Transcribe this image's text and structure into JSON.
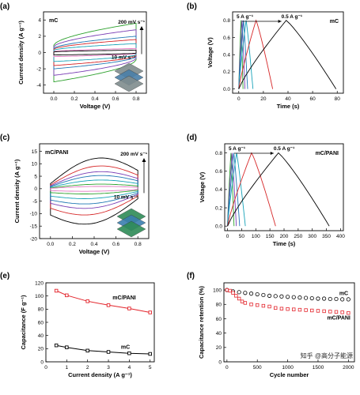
{
  "panels": [
    {
      "id": "a",
      "label": "(a)",
      "type": "cv",
      "material": "mC",
      "xlabel": "Voltage (V)",
      "ylabel": "Current density (A g⁻¹)",
      "xlim": [
        -0.1,
        0.9
      ],
      "ylim": [
        -5,
        5
      ],
      "xticks": [
        0.0,
        0.2,
        0.4,
        0.6,
        0.8
      ],
      "xtick_labels": [
        "0.0",
        "0.2",
        "0.4",
        "0.6",
        "0.8"
      ],
      "yticks": [
        -4,
        -2,
        0,
        2,
        4
      ],
      "ytick_labels": [
        "-4",
        "-2",
        "0",
        "2",
        "4"
      ],
      "annot_top": "200 mV s⁻¹",
      "annot_bottom": "10 mV s⁻¹",
      "scan_rates_mV_s": [
        200,
        150,
        100,
        80,
        50,
        20,
        10
      ],
      "colors": [
        "#2ca02c",
        "#7b3fb5",
        "#1f77b4",
        "#d62728",
        "#17a2b8",
        "#e377c2",
        "#000000"
      ],
      "peak_current_A_g": [
        3.6,
        2.8,
        2.0,
        1.6,
        1.1,
        0.5,
        0.3
      ]
    },
    {
      "id": "b",
      "label": "(b)",
      "type": "gcd",
      "material": "mC",
      "xlabel": "Time (s)",
      "ylabel": "Voltage (V)",
      "xlim": [
        -5,
        85
      ],
      "ylim": [
        -0.05,
        0.9
      ],
      "xticks": [
        0,
        20,
        40,
        60,
        80
      ],
      "xtick_labels": [
        "0",
        "20",
        "40",
        "60",
        "80"
      ],
      "yticks": [
        0.0,
        0.2,
        0.4,
        0.6,
        0.8
      ],
      "ytick_labels": [
        "0.0",
        "0.2",
        "0.4",
        "0.6",
        "0.8"
      ],
      "annot_left": "5 A g⁻¹",
      "annot_right": "0.5 A g⁻¹",
      "series": [
        {
          "current": "5 A g⁻¹",
          "color": "#2ca02c",
          "t_peak": 1.8,
          "t_end": 3.5
        },
        {
          "current": "4 A g⁻¹",
          "color": "#7b3fb5",
          "t_peak": 2.6,
          "t_end": 5.0
        },
        {
          "current": "3 A g⁻¹",
          "color": "#1f77b4",
          "t_peak": 3.8,
          "t_end": 7.2
        },
        {
          "current": "2 A g⁻¹",
          "color": "#17a2b8",
          "t_peak": 6.0,
          "t_end": 11.5
        },
        {
          "current": "1 A g⁻¹",
          "color": "#d62728",
          "t_peak": 14.0,
          "t_end": 27.5
        },
        {
          "current": "0.5 A g⁻¹",
          "color": "#000000",
          "t_peak": 38.5,
          "t_end": 79.0
        }
      ]
    },
    {
      "id": "c",
      "label": "(c)",
      "type": "cv",
      "material": "mC/PANI",
      "xlabel": "Voltage (V)",
      "ylabel": "Current density (A g⁻¹)",
      "xlim": [
        -0.1,
        0.9
      ],
      "ylim": [
        -20,
        18
      ],
      "xticks": [
        0.0,
        0.2,
        0.4,
        0.6,
        0.8
      ],
      "xtick_labels": [
        "0.0",
        "0.2",
        "0.4",
        "0.6",
        "0.8"
      ],
      "yticks": [
        -20,
        -15,
        -10,
        -5,
        0,
        5,
        10,
        15
      ],
      "ytick_labels": [
        "-20",
        "-15",
        "-10",
        "-5",
        "0",
        "5",
        "10",
        "15"
      ],
      "annot_top": "200 mV s⁻¹",
      "annot_bottom": "10 mV s⁻¹",
      "scan_rates_mV_s": [
        200,
        150,
        100,
        80,
        50,
        20,
        10
      ],
      "colors": [
        "#000000",
        "#d62728",
        "#7b3fb5",
        "#1f77b4",
        "#17a2b8",
        "#2ca02c",
        "#e377c2"
      ],
      "peak_current_A_g": [
        13.5,
        10.0,
        7.5,
        5.8,
        3.8,
        2.0,
        1.0
      ]
    },
    {
      "id": "d",
      "label": "(d)",
      "type": "gcd",
      "material": "mC/PANI",
      "xlabel": "Time (s)",
      "ylabel": "Voltage (V)",
      "xlim": [
        -10,
        410
      ],
      "ylim": [
        -0.05,
        0.9
      ],
      "xticks": [
        0,
        50,
        100,
        150,
        200,
        250,
        300,
        350,
        400
      ],
      "xtick_labels": [
        "0",
        "50",
        "100",
        "150",
        "200",
        "250",
        "300",
        "350",
        "400"
      ],
      "yticks": [
        0.0,
        0.2,
        0.4,
        0.6,
        0.8
      ],
      "ytick_labels": [
        "0.0",
        "0.2",
        "0.4",
        "0.6",
        "0.8"
      ],
      "annot_left": "5 A g⁻¹",
      "annot_right": "0.5 A g⁻¹",
      "series": [
        {
          "current": "5 A g⁻¹",
          "color": "#2ca02c",
          "t_peak": 12,
          "t_end": 23
        },
        {
          "current": "4 A g⁻¹",
          "color": "#7b3fb5",
          "t_peak": 16,
          "t_end": 31
        },
        {
          "current": "3 A g⁻¹",
          "color": "#1f77b4",
          "t_peak": 22,
          "t_end": 43
        },
        {
          "current": "2 A g⁻¹",
          "color": "#17a2b8",
          "t_peak": 32,
          "t_end": 63
        },
        {
          "current": "1 A g⁻¹",
          "color": "#d62728",
          "t_peak": 85,
          "t_end": 170
        },
        {
          "current": "0.5 A g⁻¹",
          "color": "#000000",
          "t_peak": 180,
          "t_end": 360
        }
      ]
    },
    {
      "id": "e",
      "label": "(e)",
      "type": "line",
      "xlabel": "Current density (A g⁻¹)",
      "ylabel": "Capacitance (F g⁻¹)",
      "xlim": [
        0,
        5.2
      ],
      "ylim": [
        0,
        120
      ],
      "xticks": [
        0,
        1,
        2,
        3,
        4,
        5
      ],
      "xtick_labels": [
        "0",
        "1",
        "2",
        "3",
        "4",
        "5"
      ],
      "yticks": [
        0,
        20,
        40,
        60,
        80,
        100,
        120
      ],
      "ytick_labels": [
        "0",
        "20",
        "40",
        "60",
        "80",
        "100",
        "120"
      ],
      "series": [
        {
          "name": "mC/PANI",
          "color": "#e3242b",
          "x": [
            0.5,
            1,
            2,
            3,
            4,
            5
          ],
          "y": [
            108,
            101,
            92,
            86,
            81,
            75
          ]
        },
        {
          "name": "mC",
          "color": "#000000",
          "x": [
            0.5,
            1,
            2,
            3,
            4,
            5
          ],
          "y": [
            25,
            22,
            17,
            15,
            13,
            12
          ]
        }
      ]
    },
    {
      "id": "f",
      "label": "(f)",
      "type": "scatter",
      "xlabel": "Cycle number",
      "ylabel": "Capacitance retention (%)",
      "xlim": [
        -50,
        2100
      ],
      "ylim": [
        0,
        110
      ],
      "xticks": [
        0,
        500,
        1000,
        1500,
        2000
      ],
      "xtick_labels": [
        "0",
        "500",
        "1000",
        "1500",
        "2000"
      ],
      "yticks": [
        0,
        20,
        40,
        60,
        80,
        100
      ],
      "ytick_labels": [
        "0",
        "20",
        "40",
        "60",
        "80",
        "100"
      ],
      "watermark": "知乎 @高分子能源",
      "series": [
        {
          "name": "mC",
          "color": "#000000",
          "x": [
            0,
            100,
            200,
            300,
            400,
            500,
            600,
            700,
            800,
            900,
            1000,
            1100,
            1200,
            1300,
            1400,
            1500,
            1600,
            1700,
            1800,
            1900,
            2000
          ],
          "y": [
            100,
            98,
            97,
            96,
            95,
            94,
            93,
            92,
            91.5,
            91,
            90.5,
            90,
            89.5,
            89,
            88.5,
            88,
            88,
            87.5,
            87.5,
            87,
            87
          ]
        },
        {
          "name": "mC/PANI",
          "color": "#e3242b",
          "x": [
            0,
            50,
            100,
            150,
            200,
            250,
            300,
            400,
            500,
            600,
            700,
            800,
            900,
            1000,
            1100,
            1200,
            1300,
            1400,
            1500,
            1600,
            1700,
            1800,
            1900,
            2000
          ],
          "y": [
            100,
            99,
            96,
            92,
            88,
            84,
            82,
            80,
            79,
            78,
            77,
            75,
            74,
            73.5,
            73,
            72.5,
            72,
            71.5,
            71,
            70.5,
            70,
            69.5,
            69,
            68
          ]
        }
      ]
    }
  ]
}
